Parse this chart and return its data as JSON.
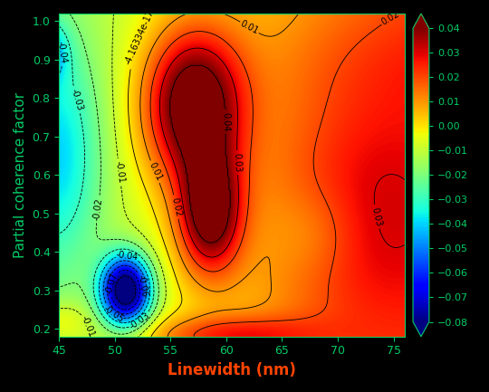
{
  "x_min": 45,
  "x_max": 76,
  "y_min": 0.18,
  "y_max": 1.02,
  "x_ticks": [
    45,
    50,
    55,
    60,
    65,
    70,
    75
  ],
  "y_ticks": [
    0.2,
    0.3,
    0.4,
    0.5,
    0.6,
    0.7,
    0.8,
    0.9,
    1.0
  ],
  "xlabel": "Linewidth (nm)",
  "ylabel": "Partial coherence factor",
  "colorbar_min": -0.08,
  "colorbar_max": 0.04,
  "colorbar_ticks": [
    0.04,
    0.03,
    0.02,
    0.01,
    0.0,
    -0.01,
    -0.02,
    -0.03,
    -0.04,
    -0.05,
    -0.06,
    -0.07,
    -0.08
  ],
  "background_color": "#000000",
  "xlabel_color": "#ff4400",
  "ylabel_color": "#00cc66",
  "tick_color": "#00cc66",
  "colorbar_tick_color": "#00cc66",
  "figsize": [
    5.4,
    4.33
  ],
  "dpi": 100
}
